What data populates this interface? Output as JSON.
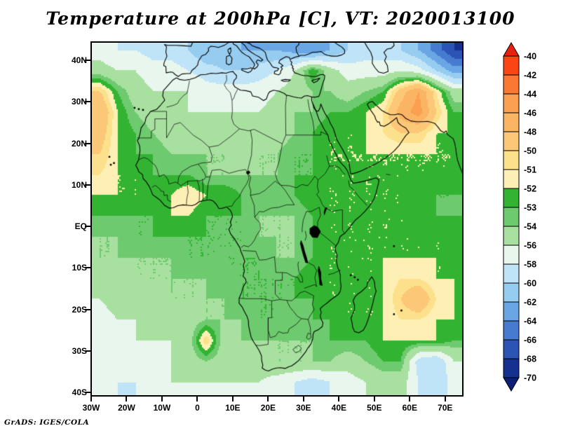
{
  "title": "Temperature at 200hPa [C], VT: 2020013100",
  "footer": "GrADS: IGES/COLA",
  "axes": {
    "lat_ticks": [
      {
        "label": "40N",
        "lat": 40
      },
      {
        "label": "30N",
        "lat": 30
      },
      {
        "label": "20N",
        "lat": 20
      },
      {
        "label": "10N",
        "lat": 10
      },
      {
        "label": "EQ",
        "lat": 0
      },
      {
        "label": "10S",
        "lat": -10
      },
      {
        "label": "20S",
        "lat": -20
      },
      {
        "label": "30S",
        "lat": -30
      },
      {
        "label": "40S",
        "lat": -40
      }
    ],
    "lon_ticks": [
      {
        "label": "30W",
        "lon": -30
      },
      {
        "label": "20W",
        "lon": -20
      },
      {
        "label": "10W",
        "lon": -10
      },
      {
        "label": "0",
        "lon": 0
      },
      {
        "label": "10E",
        "lon": 10
      },
      {
        "label": "20E",
        "lon": 20
      },
      {
        "label": "30E",
        "lon": 30
      },
      {
        "label": "40E",
        "lon": 40
      },
      {
        "label": "50E",
        "lon": 50
      },
      {
        "label": "60E",
        "lon": 60
      },
      {
        "label": "70E",
        "lon": 70
      }
    ]
  },
  "colorbar": {
    "labels": [
      -40,
      -42,
      -44,
      -46,
      -48,
      -50,
      -51,
      -52,
      -53,
      -54,
      -56,
      -58,
      -60,
      -62,
      -64,
      -66,
      -68,
      -70
    ],
    "over": "#e8200c",
    "under": "#0c1e78",
    "bins": [
      "#fa4614",
      "#fa7832",
      "#faa050",
      "#fbb464",
      "#fcc878",
      "#fde08c",
      "#fef0b4",
      "#32b432",
      "#6eca6e",
      "#a8e0a0",
      "#e8f6ee",
      "#bfe3f7",
      "#96ccf0",
      "#6aa5e4",
      "#477bd0",
      "#2b54b4",
      "#15308f"
    ]
  },
  "chart_data": {
    "type": "heatmap",
    "title": "Temperature at 200hPa [C]",
    "valid_time": "2020013100",
    "units": "C",
    "lon_range": [
      -30,
      75
    ],
    "lat_range": [
      -40.8,
      44.4
    ],
    "levels": [
      -70,
      -68,
      -66,
      -64,
      -62,
      -60,
      -58,
      -56,
      -54,
      -53,
      -52,
      -51,
      -50,
      -48,
      -46,
      -44,
      -42,
      -40
    ],
    "grid": {
      "lons": [
        -27.5,
        -22.5,
        -17.5,
        -12.5,
        -7.5,
        -2.5,
        2.5,
        7.5,
        12.5,
        17.5,
        22.5,
        27.5,
        32.5,
        37.5,
        42.5,
        47.5,
        52.5,
        57.5,
        62.5,
        67.5,
        72.5
      ],
      "lats": [
        42.5,
        37.5,
        32.5,
        27.5,
        22.5,
        17.5,
        12.5,
        7.5,
        2.5,
        -2.5,
        -7.5,
        -12.5,
        -17.5,
        -22.5,
        -27.5,
        -32.5,
        -37.5
      ],
      "values": [
        [
          -57,
          -58,
          -58,
          -59,
          -59,
          -60,
          -62,
          -61,
          -62,
          -62,
          -62,
          -63,
          -64,
          -62,
          -60,
          -59,
          -59,
          -60,
          -62,
          -65,
          -68
        ],
        [
          -55,
          -56,
          -56,
          -57,
          -57,
          -58,
          -59,
          -60,
          -60,
          -59,
          -58,
          -56,
          -52,
          -55,
          -57,
          -57,
          -57,
          -56,
          -57,
          -60,
          -63
        ],
        [
          -50,
          -53,
          -55,
          -56,
          -56,
          -56,
          -57,
          -57,
          -57,
          -57,
          -56,
          -55,
          -54,
          -54,
          -55,
          -54,
          -53,
          -49,
          -46,
          -51,
          -55
        ],
        [
          -48,
          -52,
          -54,
          -55,
          -55,
          -56,
          -56,
          -56,
          -56,
          -56,
          -55,
          -54,
          -54,
          -53,
          -53,
          -52,
          -51,
          -47,
          -45,
          -50,
          -53
        ],
        [
          -49,
          -52,
          -53,
          -54,
          -55,
          -55,
          -55,
          -55,
          -55,
          -55,
          -55,
          -54,
          -53,
          -52,
          -52,
          -52,
          -51,
          -50,
          -50,
          -52,
          -52
        ],
        [
          -50,
          -52,
          -53,
          -53,
          -54,
          -54,
          -54,
          -54,
          -55,
          -54,
          -54,
          -53,
          -53,
          -52,
          -52,
          -52,
          -52,
          -52,
          -52,
          -52,
          -52
        ],
        [
          -51,
          -52,
          -52,
          -53,
          -53,
          -53,
          -54,
          -54,
          -54,
          -54,
          -54,
          -53,
          -53,
          -52,
          -52,
          -52,
          -52,
          -52,
          -52,
          -52,
          -52
        ],
        [
          -52,
          -52,
          -52,
          -52,
          -52,
          -51,
          -52,
          -52,
          -53,
          -53,
          -53,
          -53,
          -52,
          -52,
          -52,
          -52,
          -52,
          -52,
          -53,
          -53,
          -53
        ],
        [
          -53,
          -53,
          -53,
          -53,
          -52,
          -52,
          -53,
          -53,
          -53,
          -54,
          -54,
          -54,
          -53,
          -52,
          -52,
          -52,
          -52,
          -52,
          -52,
          -53,
          -53
        ],
        [
          -54,
          -54,
          -53,
          -53,
          -53,
          -53,
          -53,
          -53,
          -53,
          -54,
          -54,
          -54,
          -53,
          -52,
          -52,
          -52,
          -52,
          -52,
          -52,
          -52,
          -52
        ],
        [
          -54,
          -54,
          -54,
          -54,
          -54,
          -53,
          -53,
          -53,
          -53,
          -53,
          -54,
          -54,
          -53,
          -52,
          -52,
          -52,
          -52,
          -52,
          -52,
          -52,
          -52
        ],
        [
          -55,
          -55,
          -54,
          -54,
          -54,
          -54,
          -54,
          -53,
          -53,
          -53,
          -53,
          -53,
          -52,
          -52,
          -52,
          -52,
          -52,
          -51,
          -51,
          -52,
          -52
        ],
        [
          -56,
          -55,
          -55,
          -55,
          -54,
          -54,
          -54,
          -54,
          -53,
          -53,
          -53,
          -53,
          -53,
          -52,
          -52,
          -52,
          -52,
          -50,
          -48,
          -51,
          -52
        ],
        [
          -57,
          -56,
          -56,
          -55,
          -55,
          -55,
          -54,
          -54,
          -54,
          -53,
          -53,
          -54,
          -53,
          -53,
          -52,
          -52,
          -52,
          -51,
          -51,
          -52,
          -52
        ],
        [
          -57,
          -57,
          -56,
          -56,
          -56,
          -55,
          -50,
          -55,
          -54,
          -54,
          -54,
          -54,
          -54,
          -53,
          -53,
          -53,
          -52,
          -52,
          -52,
          -52,
          -53
        ],
        [
          -57,
          -58,
          -57,
          -57,
          -56,
          -55,
          -54,
          -55,
          -55,
          -55,
          -54,
          -54,
          -54,
          -54,
          -55,
          -54,
          -53,
          -53,
          -59,
          -60,
          -56
        ],
        [
          -56,
          -58,
          -58,
          -57,
          -56,
          -56,
          -56,
          -56,
          -56,
          -56,
          -57,
          -58,
          -59,
          -58,
          -57,
          -56,
          -55,
          -55,
          -58,
          -60,
          -57
        ]
      ]
    }
  }
}
